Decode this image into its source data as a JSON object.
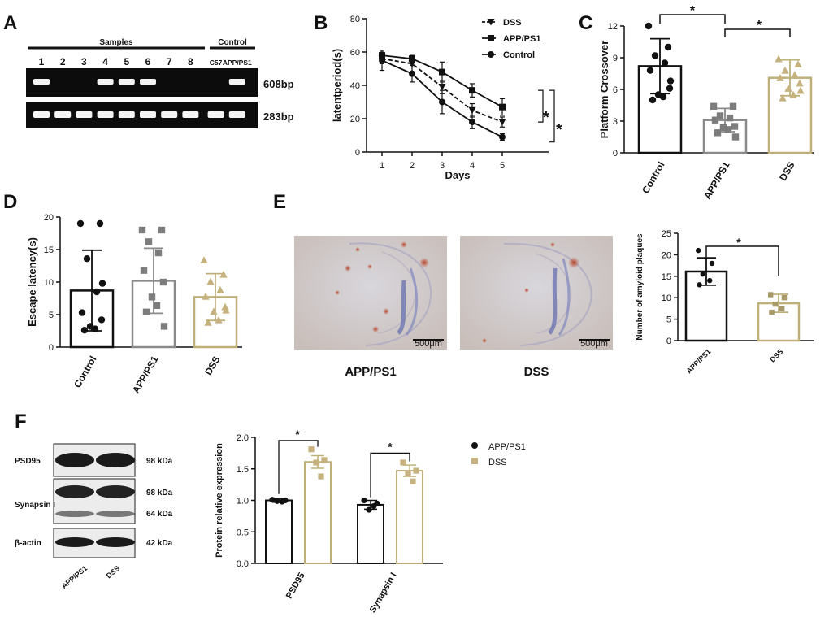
{
  "panel_labels": [
    "A",
    "B",
    "C",
    "D",
    "E",
    "F"
  ],
  "colors": {
    "control": "#111111",
    "app": "#8a8a8a",
    "dss": "#bfb07a",
    "dss_dot": "#c6b27e"
  },
  "panel_a": {
    "samples_label": "Samples",
    "control_label": "Control",
    "lanes": [
      "1",
      "2",
      "3",
      "4",
      "5",
      "6",
      "7",
      "8",
      "C57",
      "APP/PS1"
    ],
    "band_top_label": "608bp",
    "band_bottom_label": "283bp",
    "positive_lanes": [
      1,
      4,
      5,
      6,
      10
    ]
  },
  "panel_e": {
    "image_labels": [
      "APP/PS1",
      "DSS"
    ],
    "scale_bar_label": "500μm"
  },
  "panel_f_blot": {
    "rows": [
      {
        "name": "PSD95",
        "kda": [
          "98 kDa"
        ]
      },
      {
        "name": "Synapsin I",
        "kda": [
          "98 kDa",
          "64 kDa"
        ]
      },
      {
        "name": "β-actin",
        "kda": [
          "42 kDa"
        ]
      }
    ],
    "lanes": [
      "APP/PS1",
      "DSS"
    ]
  },
  "chart_data": [
    {
      "id": "B",
      "type": "line",
      "x": [
        1,
        2,
        3,
        4,
        5
      ],
      "xlabel": "Days",
      "ylabel": "latentperiod(s)",
      "ylim": [
        0,
        80
      ],
      "yticks": [
        0,
        20,
        40,
        60,
        80
      ],
      "legend": "top-right",
      "series": [
        {
          "name": "DSS",
          "values": [
            56,
            53,
            39,
            25,
            18
          ],
          "err": [
            3,
            2,
            4,
            4,
            3
          ],
          "marker": "triangle-down",
          "dash": true
        },
        {
          "name": "APP/PS1",
          "values": [
            58,
            56,
            48,
            37,
            27
          ],
          "err": [
            2,
            2,
            6,
            4,
            5
          ],
          "marker": "square",
          "dash": false
        },
        {
          "name": "Control",
          "values": [
            55,
            47,
            30,
            18,
            9
          ],
          "err": [
            6,
            5,
            7,
            4,
            2
          ],
          "marker": "circle",
          "dash": false
        }
      ],
      "sig_labels": [
        "*",
        "*"
      ]
    },
    {
      "id": "C",
      "type": "bar",
      "categories": [
        "Control",
        "APP/PS1",
        "DSS"
      ],
      "values": [
        8.2,
        3.1,
        7.1
      ],
      "err": [
        2.6,
        1.1,
        1.7
      ],
      "ylabel": "Platform Crossover",
      "ylim": [
        0,
        12
      ],
      "yticks": [
        0,
        3,
        6,
        9,
        12
      ],
      "points": [
        [
          12,
          10,
          9.2,
          8.5,
          7.8,
          6.1,
          5.5,
          5.3,
          5.0,
          6.8
        ],
        [
          4.4,
          4.4,
          3.5,
          3.3,
          3.1,
          2.5,
          2.4,
          2.2,
          1.9,
          1.5
        ],
        [
          8.9,
          8.4,
          7.8,
          7.4,
          7.1,
          6.6,
          6.1,
          5.5,
          5.2,
          5.9
        ]
      ],
      "sig_labels": [
        "*",
        "*"
      ]
    },
    {
      "id": "D",
      "type": "bar",
      "categories": [
        "Control",
        "APP/PS1",
        "DSS"
      ],
      "values": [
        8.7,
        10.2,
        7.7
      ],
      "err": [
        6.2,
        5.0,
        3.6
      ],
      "ylabel": "Escape latency(s)",
      "ylim": [
        0,
        20
      ],
      "yticks": [
        0,
        5,
        10,
        15,
        20
      ],
      "points": [
        [
          19,
          19,
          13.6,
          8.5,
          5.3,
          4.2,
          3.2,
          2.8,
          2.6,
          9.8
        ],
        [
          18,
          18,
          16.2,
          14.5,
          11.8,
          10,
          7.7,
          6.4,
          5.4,
          3.2
        ],
        [
          13.4,
          11.2,
          10.1,
          8.8,
          7.8,
          6.2,
          5.5,
          4.2,
          3.8,
          5.7
        ]
      ]
    },
    {
      "id": "E",
      "type": "bar",
      "categories": [
        "APP/PS1",
        "DSS"
      ],
      "values": [
        16.1,
        8.7
      ],
      "err": [
        3.2,
        2.1
      ],
      "ylabel": "Number of amyloid plaques",
      "ylim": [
        0,
        25
      ],
      "yticks": [
        0,
        5,
        10,
        15,
        20,
        25
      ],
      "points": [
        [
          21,
          18,
          15.5,
          14,
          13
        ],
        [
          10.7,
          10,
          8.5,
          7.5,
          6.6
        ]
      ],
      "sig_labels": [
        "*"
      ]
    },
    {
      "id": "F",
      "type": "bar",
      "categories": [
        "PSD95",
        "Synapsin I"
      ],
      "series": [
        {
          "name": "APP/PS1",
          "values": [
            1.0,
            0.93
          ],
          "err": [
            0.03,
            0.07
          ],
          "points": [
            [
              1.01,
              1.0,
              0.99,
              0.98
            ],
            [
              1.0,
              0.95,
              0.85,
              0.91
            ]
          ]
        },
        {
          "name": "DSS",
          "values": [
            1.61,
            1.47
          ],
          "err": [
            0.1,
            0.09
          ],
          "points": [
            [
              1.81,
              1.64,
              1.6,
              1.38
            ],
            [
              1.6,
              1.47,
              1.42,
              1.3
            ]
          ]
        }
      ],
      "ylabel": "Protein relative expression",
      "ylim": [
        0,
        2.0
      ],
      "yticks": [
        0.0,
        0.5,
        1.0,
        1.5,
        2.0
      ],
      "legend": "right",
      "sig_labels": [
        "*",
        "*"
      ]
    }
  ]
}
